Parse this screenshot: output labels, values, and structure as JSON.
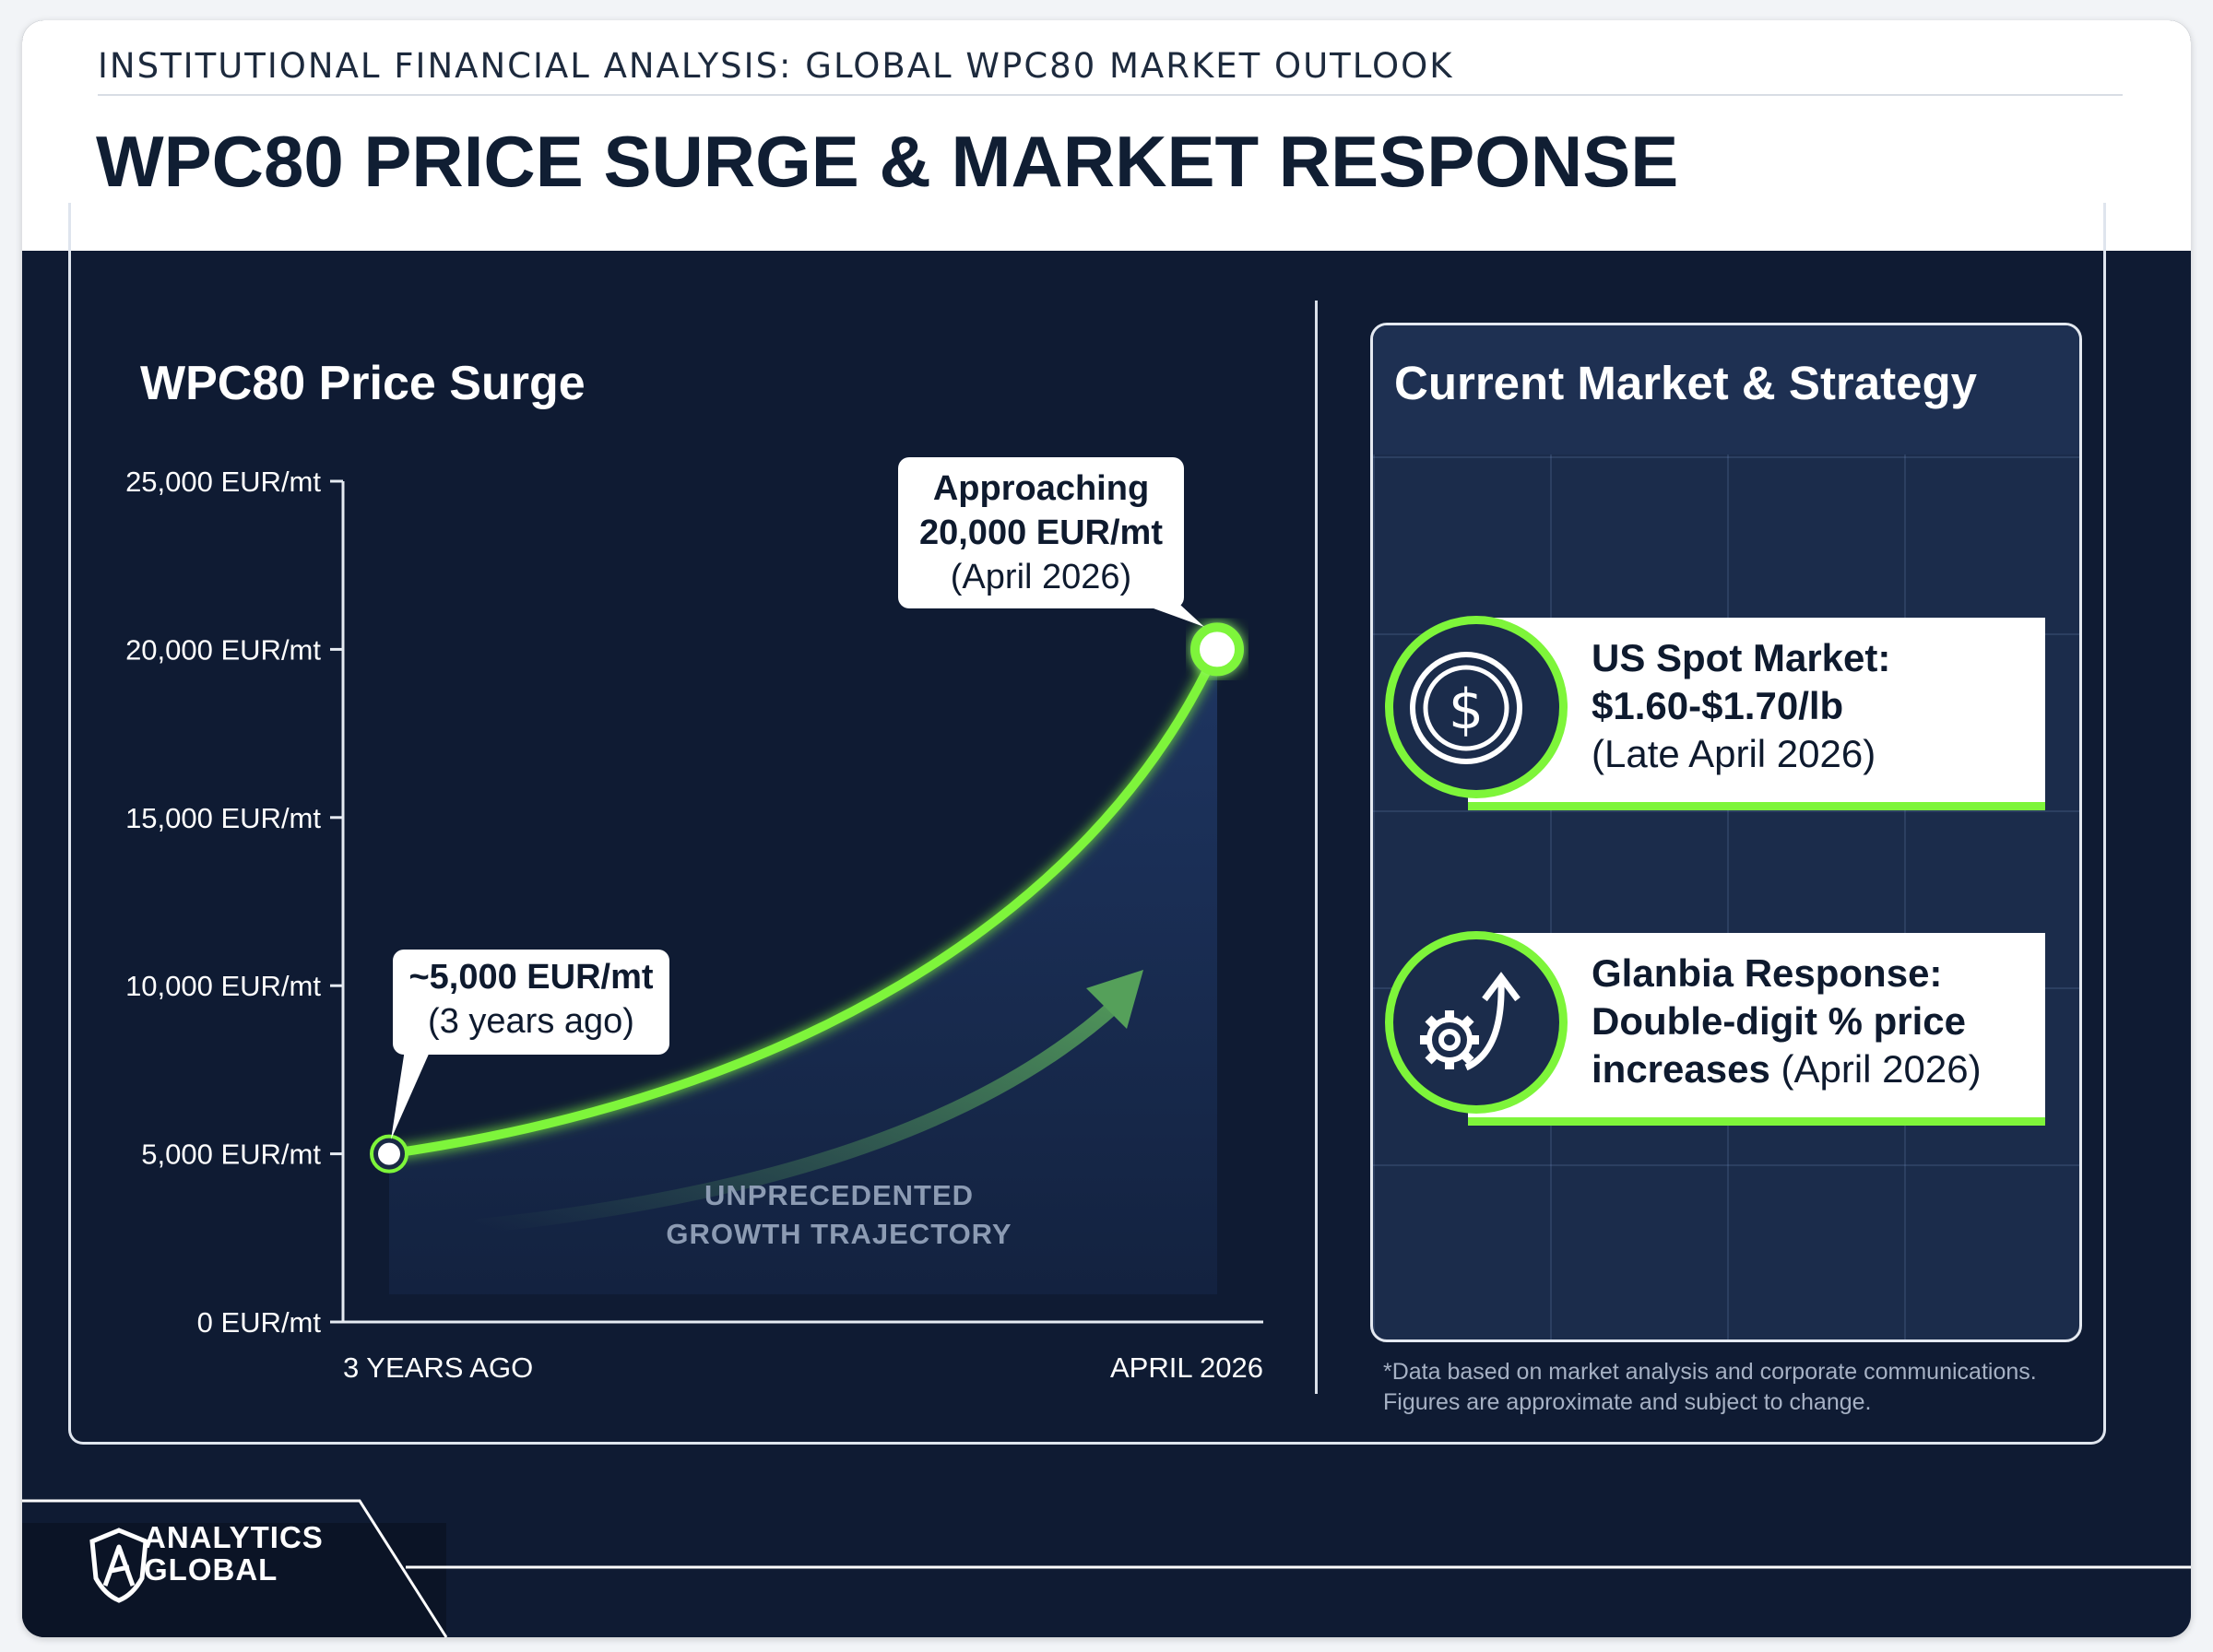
{
  "header": {
    "kicker": "INSTITUTIONAL FINANCIAL ANALYSIS: GLOBAL WPC80 MARKET OUTLOOK",
    "title": "WPC80 PRICE SURGE & MARKET RESPONSE"
  },
  "chart_panel": {
    "title": "WPC80 Price Surge",
    "start_callout": {
      "line1": "~5,000 EUR/mt",
      "line2": "(3 years ago)"
    },
    "end_callout": {
      "line1": "Approaching",
      "line2": "20,000 EUR/mt",
      "line3": "(April 2026)"
    },
    "trajectory_label": {
      "line1": "UNPRECEDENTED",
      "line2": "GROWTH TRAJECTORY"
    }
  },
  "chart_data": {
    "type": "line",
    "title": "WPC80 Price Surge",
    "unit": "EUR/mt",
    "ylim": [
      0,
      25000
    ],
    "y_ticks": [
      0,
      5000,
      10000,
      15000,
      20000,
      25000
    ],
    "y_tick_labels": [
      "0 EUR/mt",
      "5,000 EUR/mt",
      "10,000 EUR/mt",
      "15,000 EUR/mt",
      "20,000 EUR/mt",
      "25,000 EUR/mt"
    ],
    "x_tick_labels": [
      "3 YEARS AGO",
      "APRIL 2026"
    ],
    "series": [
      {
        "x": [
          "3 YEARS AGO",
          "APRIL 2026"
        ],
        "values": [
          5000,
          20000
        ]
      }
    ],
    "grid": false,
    "colors": {
      "line": "#7ef53a",
      "area": "#2a4a86"
    }
  },
  "market_panel": {
    "title": "Current Market & Strategy",
    "cards": [
      {
        "icon": "dollar-coin-icon",
        "line1": "US Spot Market:",
        "line2": "$1.60-$1.70/lb",
        "line3": "(Late April 2026)"
      },
      {
        "icon": "gear-arrow-up-icon",
        "line1": "Glanbia Response:",
        "line2": "Double-digit % price",
        "line3_bold": "increases",
        "line3_rest": " (April 2026)"
      }
    ],
    "footnote_line1": "*Data based on market analysis and corporate communications.",
    "footnote_line2": "Figures are approximate and subject to change."
  },
  "brand": {
    "line1": "ANALYTICS",
    "line2": "GLOBAL",
    "accent": "#7ef53a"
  }
}
